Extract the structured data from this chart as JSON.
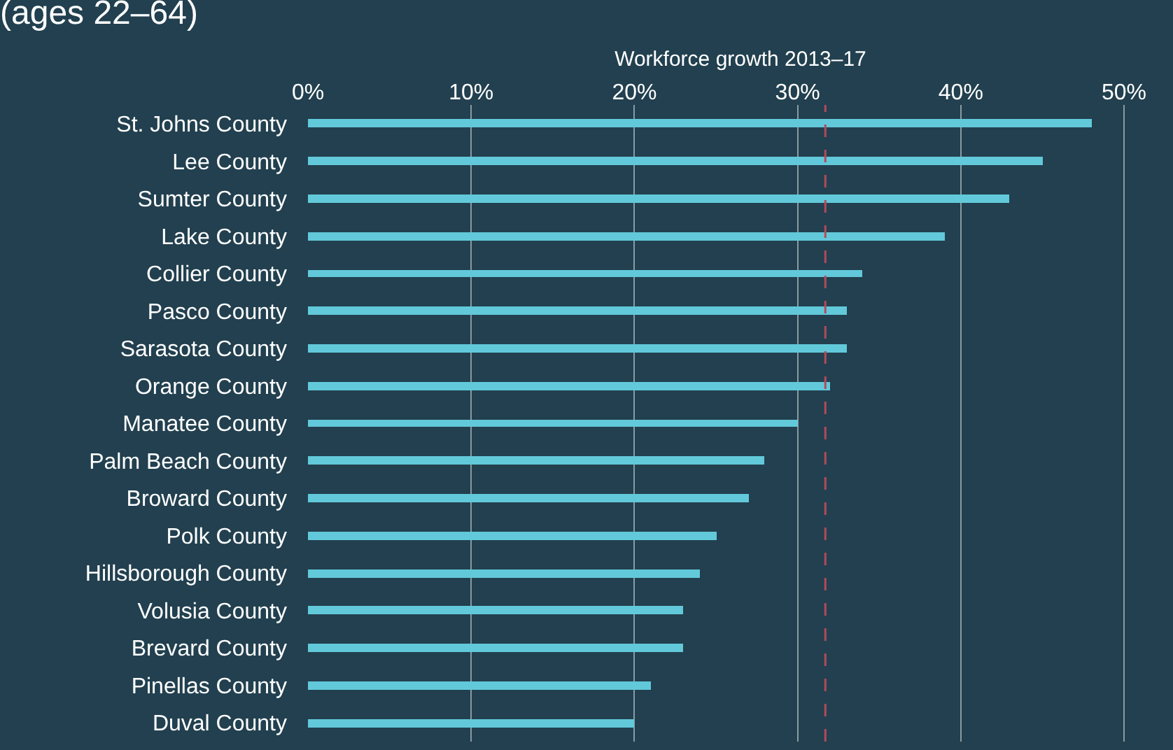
{
  "chart_data": {
    "type": "bar",
    "orientation": "horizontal",
    "title": "(ages 22–64)",
    "xlabel": "Workforce growth 2013–17",
    "categories": [
      "St. Johns County",
      "Lee County",
      "Sumter County",
      "Lake County",
      "Collier County",
      "Pasco County",
      "Sarasota County",
      "Orange County",
      "Manatee County",
      "Palm Beach County",
      "Broward County",
      "Polk County",
      "Hillsborough County",
      "Volusia County",
      "Brevard County",
      "Pinellas County",
      "Duval County"
    ],
    "values": [
      48,
      45,
      43,
      39,
      34,
      33,
      33,
      32,
      30,
      28,
      27,
      25,
      24,
      23,
      23,
      21,
      20
    ],
    "color": "#62c9da",
    "xlim": [
      0,
      53
    ],
    "xticks": [
      {
        "value": 0,
        "label": "0%"
      },
      {
        "value": 10,
        "label": "10%"
      },
      {
        "value": 20,
        "label": "20%"
      },
      {
        "value": 30,
        "label": "30%"
      },
      {
        "value": 40,
        "label": "40%"
      },
      {
        "value": 50,
        "label": "50%"
      }
    ],
    "grid": "x",
    "ref_lines": [
      {
        "axis": "x",
        "value": 31.7,
        "color": "#b34a5a",
        "line_style": "dashed"
      }
    ]
  }
}
